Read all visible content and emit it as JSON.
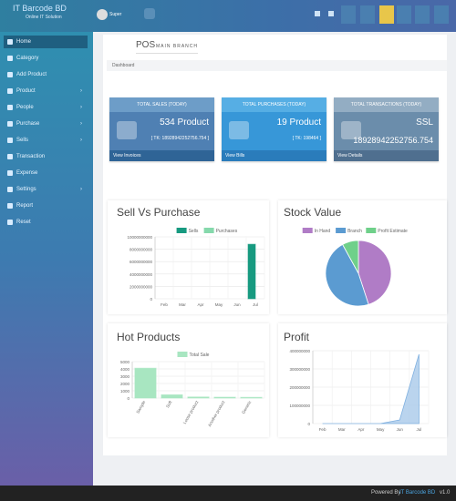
{
  "header": {
    "brand": "IT Barcode BD",
    "tagline": "Online IT Solution",
    "user": "Super"
  },
  "sidebar": {
    "items": [
      "Home",
      "Category",
      "Add Product",
      "Product",
      "People",
      "Purchase",
      "Sells",
      "Transaction",
      "Expense",
      "Settings",
      "Report",
      "Reset"
    ]
  },
  "page": {
    "title": "POS",
    "subtitle": "MAIN BRANCH",
    "breadcrumb": "Dashboard"
  },
  "cards": [
    {
      "title": "TOTAL SALES (TODAY)",
      "main": "534 Product",
      "sub": "[ TK: 18928942252756.754 ]",
      "link": "View Invoices"
    },
    {
      "title": "TOTAL PURCHASES (TODAY)",
      "main": "19 Product",
      "sub": "[ TK: 198464 ]",
      "link": "View Bills"
    },
    {
      "title": "TOTAL TRANSACTIONS (TODAY)",
      "main": "SSL",
      "sub": "18928942252756.754",
      "link": "View Details"
    }
  ],
  "chart_data": [
    {
      "type": "bar",
      "title": "Sell Vs Purchase",
      "categories": [
        "Feb",
        "Mar",
        "Apr",
        "May",
        "Jun",
        "Jul"
      ],
      "series": [
        {
          "name": "Sells",
          "color": "#179a80",
          "values": [
            0,
            0,
            0,
            0,
            0,
            8800000000
          ]
        },
        {
          "name": "Purchases",
          "color": "#86d9ac",
          "values": [
            0,
            0,
            0,
            0,
            0,
            0
          ]
        }
      ],
      "ylim": [
        0,
        10000000000
      ],
      "yticks": [
        0,
        2000000000,
        4000000000,
        6000000000,
        8000000000,
        10000000000
      ],
      "grid": true
    },
    {
      "type": "pie",
      "title": "Stock Value",
      "categories": [
        "In Hand",
        "Branch",
        "Profit Estimate"
      ],
      "colors": [
        "#b07cc6",
        "#5b9bd1",
        "#6fd08a"
      ],
      "values": [
        45,
        47,
        8
      ]
    },
    {
      "type": "bar",
      "title": "Hot Products",
      "categories": [
        "Sample",
        "Soft",
        "Loose product",
        "Another product",
        "Generic"
      ],
      "series": [
        {
          "name": "Total Sale",
          "color": "#a8e6c1",
          "values": [
            4100,
            450,
            150,
            120,
            100
          ]
        }
      ],
      "ylim": [
        0,
        5000
      ],
      "yticks": [
        0,
        1000,
        2000,
        3000,
        4000,
        5000
      ],
      "grid": true
    },
    {
      "type": "area",
      "title": "Profit",
      "categories": [
        "Feb",
        "Mar",
        "Apr",
        "May",
        "Jun",
        "Jul"
      ],
      "values": [
        0,
        0,
        0,
        0,
        20000000,
        380000000
      ],
      "color": "#a9c9ea",
      "ylim": [
        0,
        400000000
      ],
      "yticks": [
        0,
        100000000,
        200000000,
        300000000,
        400000000
      ],
      "grid": true
    }
  ],
  "footer": {
    "text": "Powered By",
    "link": "IT Barcode BD",
    "version": "v1.0"
  }
}
